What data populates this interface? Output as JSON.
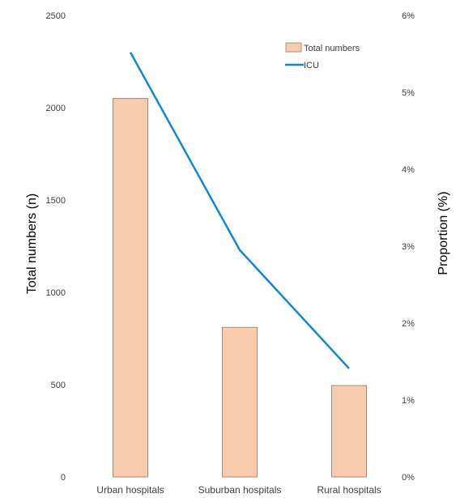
{
  "chart_data": {
    "type": "bar",
    "categories": [
      "Urban hospitals",
      "Suburban hospitals",
      "Rural hospitals"
    ],
    "series": [
      {
        "name": "Total numbers",
        "type": "bar",
        "axis": "left",
        "values": [
          2050,
          810,
          495
        ],
        "color": "#f9cbad"
      },
      {
        "name": "ICU",
        "type": "line",
        "axis": "right",
        "values": [
          5.52,
          2.95,
          1.41
        ],
        "color": "#0f87d8"
      }
    ],
    "ylabel": "Total numbers (n)",
    "y2label": "Proportion (%)",
    "ylim": [
      0,
      2500
    ],
    "y2lim": [
      0,
      6
    ],
    "yticks": [
      "0",
      "500",
      "1000",
      "1500",
      "2000",
      "2500"
    ],
    "y2ticks": [
      "0%",
      "1%",
      "2%",
      "3%",
      "4%",
      "5%",
      "6%"
    ],
    "legend_position": "top-right",
    "grid": false
  }
}
